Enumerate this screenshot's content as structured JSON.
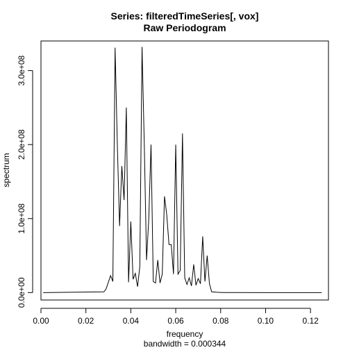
{
  "chart_data": {
    "type": "line",
    "title": "Series: filteredTimeSeries[, vox]",
    "subtitle": "Raw Periodogram",
    "xlabel": "frequency",
    "xlabel_sub": "bandwidth = 0.000344",
    "ylabel": "spectrum",
    "xlim": [
      0.0,
      0.128
    ],
    "ylim": [
      -10000000,
      340000000
    ],
    "x_ticks": [
      0.0,
      0.02,
      0.04,
      0.06,
      0.08,
      0.1,
      0.12
    ],
    "x_tick_labels": [
      "0.00",
      "0.02",
      "0.04",
      "0.06",
      "0.08",
      "0.10",
      "0.12"
    ],
    "y_ticks": [
      0,
      100000000,
      200000000,
      300000000
    ],
    "y_tick_labels": [
      "0.0e+00",
      "1.0e+08",
      "2.0e+08",
      "3.0e+08"
    ],
    "grid": false,
    "line_color": "#000000",
    "series": [
      {
        "x": [
          0.001,
          0.028,
          0.029,
          0.031,
          0.032,
          0.033,
          0.034,
          0.035,
          0.036,
          0.037,
          0.038,
          0.039,
          0.04,
          0.041,
          0.042,
          0.043,
          0.044,
          0.045,
          0.046,
          0.047,
          0.048,
          0.049,
          0.05,
          0.051,
          0.052,
          0.053,
          0.054,
          0.055,
          0.056,
          0.057,
          0.058,
          0.059,
          0.06,
          0.061,
          0.062,
          0.063,
          0.064,
          0.065,
          0.066,
          0.067,
          0.068,
          0.069,
          0.07,
          0.071,
          0.072,
          0.073,
          0.074,
          0.075,
          0.076,
          0.077,
          0.078,
          0.079,
          0.08,
          0.081,
          0.082,
          0.083,
          0.125
        ],
        "y": [
          0,
          1000000,
          5000000,
          23000000,
          15000000,
          331000000,
          200000000,
          90000000,
          171000000,
          125000000,
          250000000,
          14000000,
          96000000,
          18000000,
          26000000,
          8000000,
          35000000,
          332000000,
          200000000,
          44000000,
          100000000,
          200000000,
          15000000,
          13000000,
          44000000,
          13000000,
          25000000,
          130000000,
          105000000,
          65000000,
          65000000,
          25000000,
          200000000,
          25000000,
          30000000,
          215000000,
          20000000,
          11000000,
          20000000,
          9000000,
          38000000,
          10000000,
          19000000,
          12000000,
          76000000,
          15000000,
          50000000,
          12000000,
          1000000,
          800000,
          500000,
          300000,
          200000,
          100000,
          50000,
          30000,
          0
        ]
      }
    ]
  }
}
